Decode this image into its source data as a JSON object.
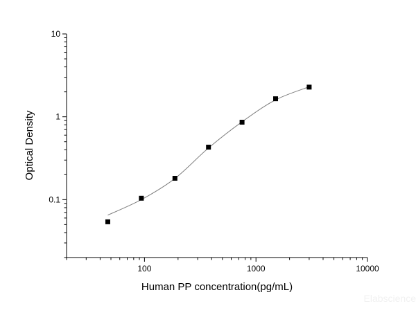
{
  "chart_data": {
    "type": "scatter",
    "title": "",
    "xlabel": "Human PP concentration(pg/mL)",
    "ylabel": "Optical Density",
    "x_scale": "log",
    "y_scale": "log",
    "xlim": [
      20,
      10000
    ],
    "ylim": [
      0.02,
      10
    ],
    "x_ticks": [
      100,
      1000,
      10000
    ],
    "x_tick_labels": [
      "100",
      "1000",
      "10000"
    ],
    "y_ticks": [
      0.1,
      1,
      10
    ],
    "y_tick_labels": [
      "0.1",
      "1",
      "10"
    ],
    "grid": false,
    "series": [
      {
        "marker": "square",
        "color": "#000000",
        "x": [
          46.875,
          93.75,
          187.5,
          375,
          750,
          1500,
          3000
        ],
        "y": [
          0.054,
          0.104,
          0.181,
          0.43,
          0.86,
          1.65,
          2.28
        ]
      }
    ],
    "fit_curve": {
      "color": "#808080",
      "kind": "smooth fitted curve"
    }
  },
  "watermark": "Elabscience"
}
